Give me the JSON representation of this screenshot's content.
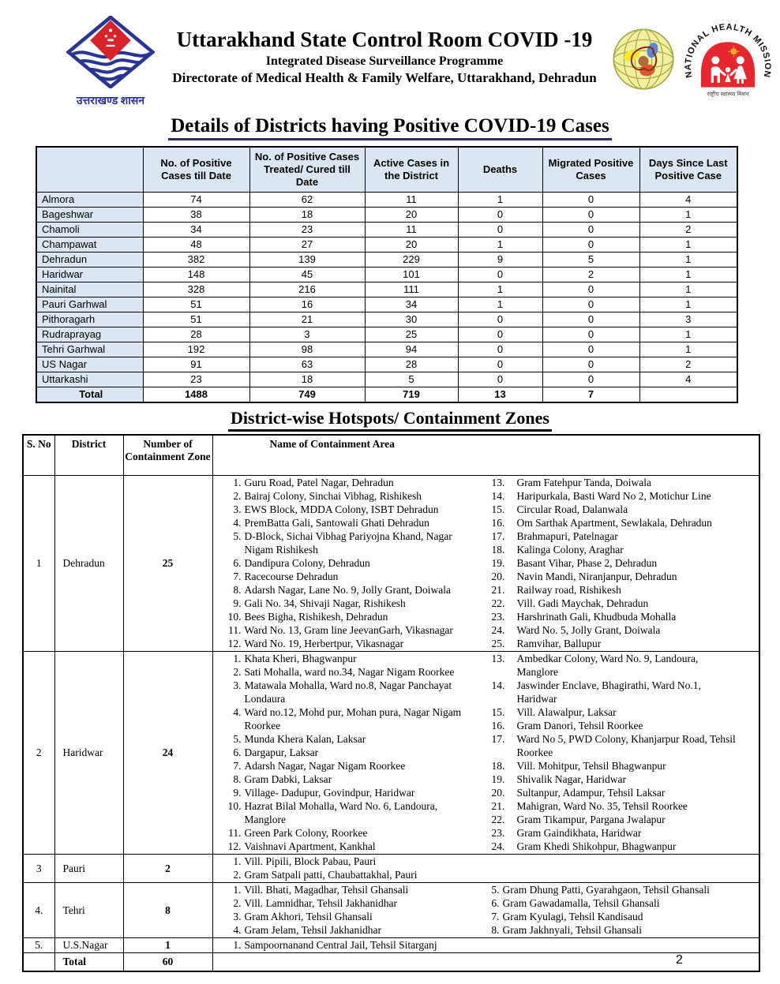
{
  "header": {
    "title": "Uttarakhand State Control Room COVID -19",
    "subtitle1": "Integrated Disease Surveillance Programme",
    "subtitle2": "Directorate of Medical Health & Family Welfare, Uttarakhand, Dehradun",
    "left_logo_caption": "उत्तराखण्ड शासन",
    "logos": [
      "uttarakhand-government-emblem",
      "idsp-globe-logo",
      "national-health-mission-logo"
    ],
    "nhm_arc_text": "NATIONAL HEALTH MISSION",
    "nhm_caption": "राष्ट्रीय स्वास्थ्य मिशन"
  },
  "colors": {
    "table_header_blue": "#dce6f2",
    "title_underline": "#332a6e",
    "emblem_blue": "#283593",
    "emblem_red": "#d8232a",
    "nhm_red": "#e8262d",
    "border_black": "#000000"
  },
  "section1": {
    "title": "Details of Districts having Positive COVID-19 Cases",
    "table": {
      "columns": [
        "",
        "No. of Positive Cases till Date",
        "No. of Positive Cases Treated/ Cured till Date",
        "Active Cases in the District",
        "Deaths",
        "Migrated Positive Cases",
        "Days Since Last Positive Case"
      ],
      "rows": [
        {
          "district": "Almora",
          "values": [
            "74",
            "62",
            "11",
            "1",
            "0",
            "4"
          ]
        },
        {
          "district": "Bageshwar",
          "values": [
            "38",
            "18",
            "20",
            "0",
            "0",
            "1"
          ]
        },
        {
          "district": "Chamoli",
          "values": [
            "34",
            "23",
            "11",
            "0",
            "0",
            "2"
          ]
        },
        {
          "district": "Champawat",
          "values": [
            "48",
            "27",
            "20",
            "1",
            "0",
            "1"
          ]
        },
        {
          "district": "Dehradun",
          "values": [
            "382",
            "139",
            "229",
            "9",
            "5",
            "1"
          ]
        },
        {
          "district": "Haridwar",
          "values": [
            "148",
            "45",
            "101",
            "0",
            "2",
            "1"
          ]
        },
        {
          "district": "Nainital",
          "values": [
            "328",
            "216",
            "111",
            "1",
            "0",
            "1"
          ]
        },
        {
          "district": "Pauri Garhwal",
          "values": [
            "51",
            "16",
            "34",
            "1",
            "0",
            "1"
          ]
        },
        {
          "district": "Pithoragarh",
          "values": [
            "51",
            "21",
            "30",
            "0",
            "0",
            "3"
          ]
        },
        {
          "district": "Rudraprayag",
          "values": [
            "28",
            "3",
            "25",
            "0",
            "0",
            "1"
          ]
        },
        {
          "district": "Tehri Garhwal",
          "values": [
            "192",
            "98",
            "94",
            "0",
            "0",
            "1"
          ]
        },
        {
          "district": "US Nagar",
          "values": [
            "91",
            "63",
            "28",
            "0",
            "0",
            "2"
          ]
        },
        {
          "district": "Uttarkashi",
          "values": [
            "23",
            "18",
            "5",
            "0",
            "0",
            "4"
          ]
        }
      ],
      "total": {
        "district": "Total",
        "values": [
          "1488",
          "749",
          "719",
          "13",
          "7",
          ""
        ]
      }
    }
  },
  "section2": {
    "title": "District-wise Hotspots/ Containment Zones",
    "columns": [
      "S. No",
      "District",
      "Number of Containment Zone",
      "Name of Containment Area"
    ],
    "rows": [
      {
        "sno": "1",
        "district": "Dehradun",
        "zones": "25",
        "right_style": "wide",
        "left": [
          [
            "1.",
            "Guru Road, Patel Nagar, Dehradun"
          ],
          [
            "2.",
            "Bairaj Colony, Sinchai Vibhag, Rishikesh"
          ],
          [
            "3.",
            "EWS Block, MDDA Colony, ISBT Dehradun"
          ],
          [
            "4.",
            "PremBatta Gali, Santowali Ghati Dehradun"
          ],
          [
            "5.",
            "D-Block, Sichai Vibhag Pariyojna Khand, Nagar Nigam Rishikesh"
          ],
          [
            "6.",
            "Dandipura Colony, Dehradun"
          ],
          [
            "7.",
            "Racecourse Dehradun"
          ],
          [
            "8.",
            "Adarsh Nagar, Lane No. 9, Jolly Grant, Doiwala"
          ],
          [
            "9.",
            "Gali No. 34, Shivaji Nagar, Rishikesh"
          ],
          [
            "10.",
            "Bees Bigha, Rishikesh, Dehradun"
          ],
          [
            "11.",
            "Ward No. 13, Gram line JeevanGarh, Vikasnagar"
          ],
          [
            "12.",
            "Ward No. 19, Herbertpur, Vikasnagar"
          ]
        ],
        "right": [
          [
            "13.",
            "Gram Fatehpur Tanda, Doiwala"
          ],
          [
            "14.",
            "Haripurkala, Basti Ward No 2, Motichur Line"
          ],
          [
            "15.",
            "Circular Road, Dalanwala"
          ],
          [
            "16.",
            "Om Sarthak Apartment, Sewlakala, Dehradun"
          ],
          [
            "17.",
            "Brahmapuri, Patelnagar"
          ],
          [
            "18.",
            "Kalinga Colony, Araghar"
          ],
          [
            "19.",
            "Basant Vihar, Phase 2, Dehradun"
          ],
          [
            "20.",
            "Navin Mandi, Niranjanpur, Dehradun"
          ],
          [
            "21.",
            "Railway road, Rishikesh"
          ],
          [
            "22.",
            "Vill. Gadi Maychak, Dehradun"
          ],
          [
            "23.",
            "Harshrinath Gali, Khudbuda Mohalla"
          ],
          [
            "24.",
            "Ward No. 5, Jolly Grant, Doiwala"
          ],
          [
            "25.",
            "Ramvihar, Ballupur"
          ]
        ]
      },
      {
        "sno": "2",
        "district": "Haridwar",
        "zones": "24",
        "right_style": "wide",
        "left": [
          [
            "1.",
            "Khata Kheri, Bhagwanpur"
          ],
          [
            "2.",
            "Sati Mohalla, ward no.34, Nagar Nigam Roorkee"
          ],
          [
            "3.",
            "Matawala Mohalla, Ward no.8, Nagar Panchayat Londaura"
          ],
          [
            "4.",
            "Ward no.12, Mohd pur, Mohan pura, Nagar Nigam Roorkee"
          ],
          [
            "5.",
            "Munda Khera Kalan, Laksar"
          ],
          [
            "6.",
            "Dargapur, Laksar"
          ],
          [
            "7.",
            "Adarsh Nagar, Nagar Nigam Roorkee"
          ],
          [
            "8.",
            "Gram Dabki, Laksar"
          ],
          [
            "9.",
            "Village- Dadupur, Govindpur, Haridwar"
          ],
          [
            "10.",
            "Hazrat Bilal Mohalla, Ward No. 6, Landoura, Manglore"
          ],
          [
            "11.",
            "Green Park Colony, Roorkee"
          ],
          [
            "12.",
            "Vaishnavi Apartment, Kankhal"
          ]
        ],
        "right": [
          [
            "13.",
            "Ambedkar Colony, Ward No. 9, Landoura, Manglore"
          ],
          [
            "14.",
            "Jaswinder Enclave, Bhagirathi, Ward No.1, Haridwar"
          ],
          [
            "15.",
            "Vill. Alawalpur, Laksar"
          ],
          [
            "16.",
            "Gram Danori, Tehsil Roorkee"
          ],
          [
            "17.",
            "Ward No 5, PWD Colony, Khanjarpur Road, Tehsil Roorkee"
          ],
          [
            "18.",
            "Vill. Mohitpur, Tehsil Bhagwanpur"
          ],
          [
            "19.",
            "Shivalik Nagar, Haridwar"
          ],
          [
            "20.",
            "Sultanpur, Adampur, Tehsil Laksar"
          ],
          [
            "21.",
            "Mahigran, Ward No. 35, Tehsil Roorkee"
          ],
          [
            "22.",
            "Gram Tikampur, Pargana Jwalapur"
          ],
          [
            "23.",
            "Gram Gaindikhata, Haridwar"
          ],
          [
            "24.",
            "Gram Khedi Shikohpur, Bhagwanpur"
          ]
        ]
      },
      {
        "sno": "3",
        "district": "Pauri",
        "zones": "2",
        "right_style": "narrow",
        "left": [
          [
            "1.",
            "Vill. Pipili, Block Pabau, Pauri"
          ],
          [
            "2.",
            "Gram Satpali patti, Chaubattakhal, Pauri"
          ]
        ],
        "right": []
      },
      {
        "sno": "4.",
        "district": "Tehri",
        "zones": "8",
        "right_style": "narrow",
        "left": [
          [
            "1.",
            "Vill. Bhati, Magadhar, Tehsil Ghansali"
          ],
          [
            "2.",
            "Vill. Lamnidhar, Tehsil Jakhanidhar"
          ],
          [
            "3.",
            "Gram Akhori, Tehsil Ghansali"
          ],
          [
            "4.",
            "Gram Jelam, Tehsil Jakhanidhar"
          ]
        ],
        "right": [
          [
            "5.",
            "Gram Dhung Patti, Gyarahgaon, Tehsil Ghansali"
          ],
          [
            "6.",
            "Gram Gawadamalla, Tehsil Ghansali"
          ],
          [
            "7.",
            "Gram Kyulagi, Tehsil Kandisaud"
          ],
          [
            "8.",
            "Gram Jakhnyali, Tehsil Ghansali"
          ]
        ]
      },
      {
        "sno": "5.",
        "district": "U.S.Nagar",
        "zones": "1",
        "right_style": "narrow",
        "left": [
          [
            "1.",
            "Sampoornanand  Central Jail, Tehsil Sitarganj"
          ]
        ],
        "right": []
      }
    ],
    "total": {
      "sno": "",
      "district": "Total",
      "zones": "60"
    }
  },
  "page_number": "2"
}
